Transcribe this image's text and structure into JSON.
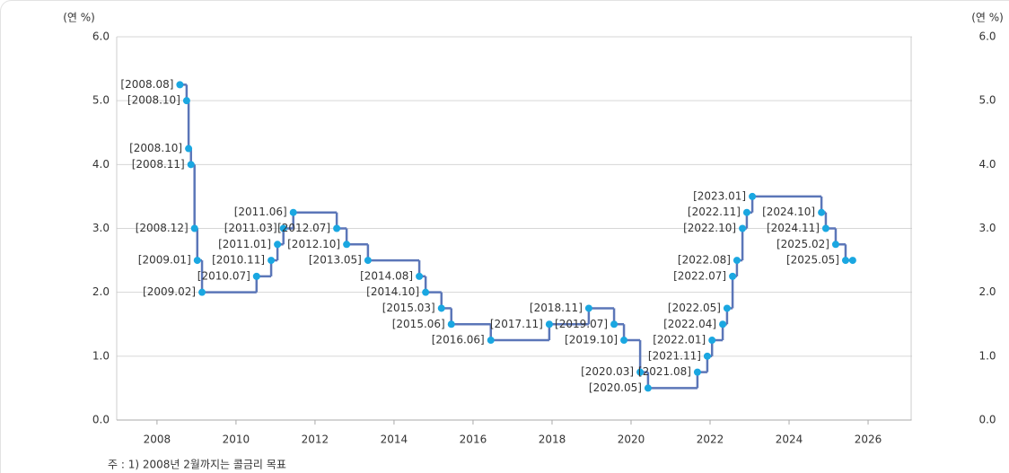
{
  "chart_data": {
    "type": "step",
    "y_unit_label": "(연 %)",
    "y2_unit_label": "(연 %)",
    "footnote": "주 : 1) 2008년 2월까지는 콜금리 목표",
    "x": [
      2008.58,
      2008.75,
      2008.8,
      2008.86,
      2008.95,
      2009.02,
      2009.14,
      2010.52,
      2010.89,
      2011.05,
      2011.2,
      2011.45,
      2012.55,
      2012.8,
      2013.34,
      2014.64,
      2014.8,
      2015.2,
      2015.45,
      2016.45,
      2017.93,
      2018.93,
      2019.57,
      2019.82,
      2020.23,
      2020.43,
      2021.68,
      2021.93,
      2022.05,
      2022.32,
      2022.43,
      2022.57,
      2022.68,
      2022.82,
      2022.93,
      2023.07,
      2024.82,
      2024.93,
      2025.18,
      2025.43,
      2025.61
    ],
    "series": [
      {
        "color": "#5b76b8",
        "marker_color": "#1aa7e1",
        "values": [
          5.25,
          5.0,
          4.25,
          4.0,
          3.0,
          2.5,
          2.0,
          2.25,
          2.5,
          2.75,
          3.0,
          3.25,
          3.0,
          2.75,
          2.5,
          2.25,
          2.0,
          1.75,
          1.5,
          1.25,
          1.5,
          1.75,
          1.5,
          1.25,
          0.75,
          0.5,
          0.75,
          1.0,
          1.25,
          1.5,
          1.75,
          2.25,
          2.5,
          3.0,
          3.25,
          3.5,
          3.25,
          3.0,
          2.75,
          2.5,
          2.5
        ],
        "point_labels": [
          "[2008.08]",
          "[2008.10]",
          "[2008.10]",
          "[2008.11]",
          "[2008.12]",
          "[2009.01]",
          "[2009.02]",
          "[2010.07]",
          "[2010.11]",
          "[2011.01]",
          "[2011.03]",
          "[2011.06]",
          "[2012.07]",
          "[2012.10]",
          "[2013.05]",
          "[2014.08]",
          "[2014.10]",
          "[2015.03]",
          "[2015.06]",
          "[2016.06]",
          "[2017.11]",
          "[2018.11]",
          "[2019.07]",
          "[2019.10]",
          "[2020.03]",
          "[2020.05]",
          "[2021.08]",
          "[2021.11]",
          "[2022.01]",
          "[2022.04]",
          "[2022.05]",
          "[2022.07]",
          "[2022.08]",
          "[2022.10]",
          "[2022.11]",
          "[2023.01]",
          "[2024.10]",
          "[2024.11]",
          "[2025.02]",
          "[2025.05]",
          null
        ]
      }
    ],
    "xlim": [
      2006.98,
      2027.09
    ],
    "xticks": [
      2008,
      2010,
      2012,
      2014,
      2016,
      2018,
      2020,
      2022,
      2024,
      2026
    ],
    "ylim": [
      0,
      6
    ],
    "yticks": [
      {
        "value": 0,
        "label": "0.0"
      },
      {
        "value": 1,
        "label": "1.0"
      },
      {
        "value": 2,
        "label": "2.0"
      },
      {
        "value": 3,
        "label": "3.0"
      },
      {
        "value": 4,
        "label": "4.0"
      },
      {
        "value": 5,
        "label": "5.0"
      },
      {
        "value": 6,
        "label": "6.0"
      }
    ],
    "y2lim": [
      0,
      6
    ],
    "y2ticks": [
      {
        "value": 0,
        "label": "0.0"
      },
      {
        "value": 1,
        "label": "1.0"
      },
      {
        "value": 2,
        "label": "2.0"
      },
      {
        "value": 3,
        "label": "3.0"
      },
      {
        "value": 4,
        "label": "4.0"
      },
      {
        "value": 5,
        "label": "5.0"
      },
      {
        "value": 6,
        "label": "6.0"
      }
    ],
    "grid": true
  }
}
